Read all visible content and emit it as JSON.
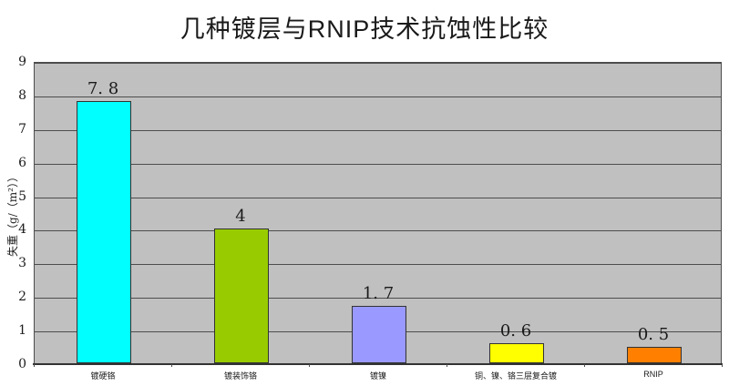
{
  "chart_data": {
    "type": "bar",
    "title": "几种镀层与RNIP技术抗蚀性比较",
    "ylabel": "失重（g/（m²））",
    "xlabel": "",
    "categories": [
      "镀硬铬",
      "镀装饰铬",
      "镀镍",
      "铜、镍、铬三层复合镀",
      "RNIP"
    ],
    "values": [
      7.8,
      4,
      1.7,
      0.6,
      0.5
    ],
    "value_labels": [
      "7. 8",
      "4",
      "1. 7",
      "0. 6",
      "0. 5"
    ],
    "bar_colors": [
      "#00ffff",
      "#99cc00",
      "#9999ff",
      "#ffff00",
      "#ff8000"
    ],
    "ylim": [
      0,
      9
    ],
    "ytick_step": 1,
    "ytick_labels": [
      "0",
      "1",
      "2",
      "3",
      "4",
      "5",
      "6",
      "7",
      "8",
      "9"
    ],
    "grid": true,
    "legend_position": "none",
    "plot_background": "#c0c0c0",
    "gridline_color": "#4d4d4d"
  }
}
